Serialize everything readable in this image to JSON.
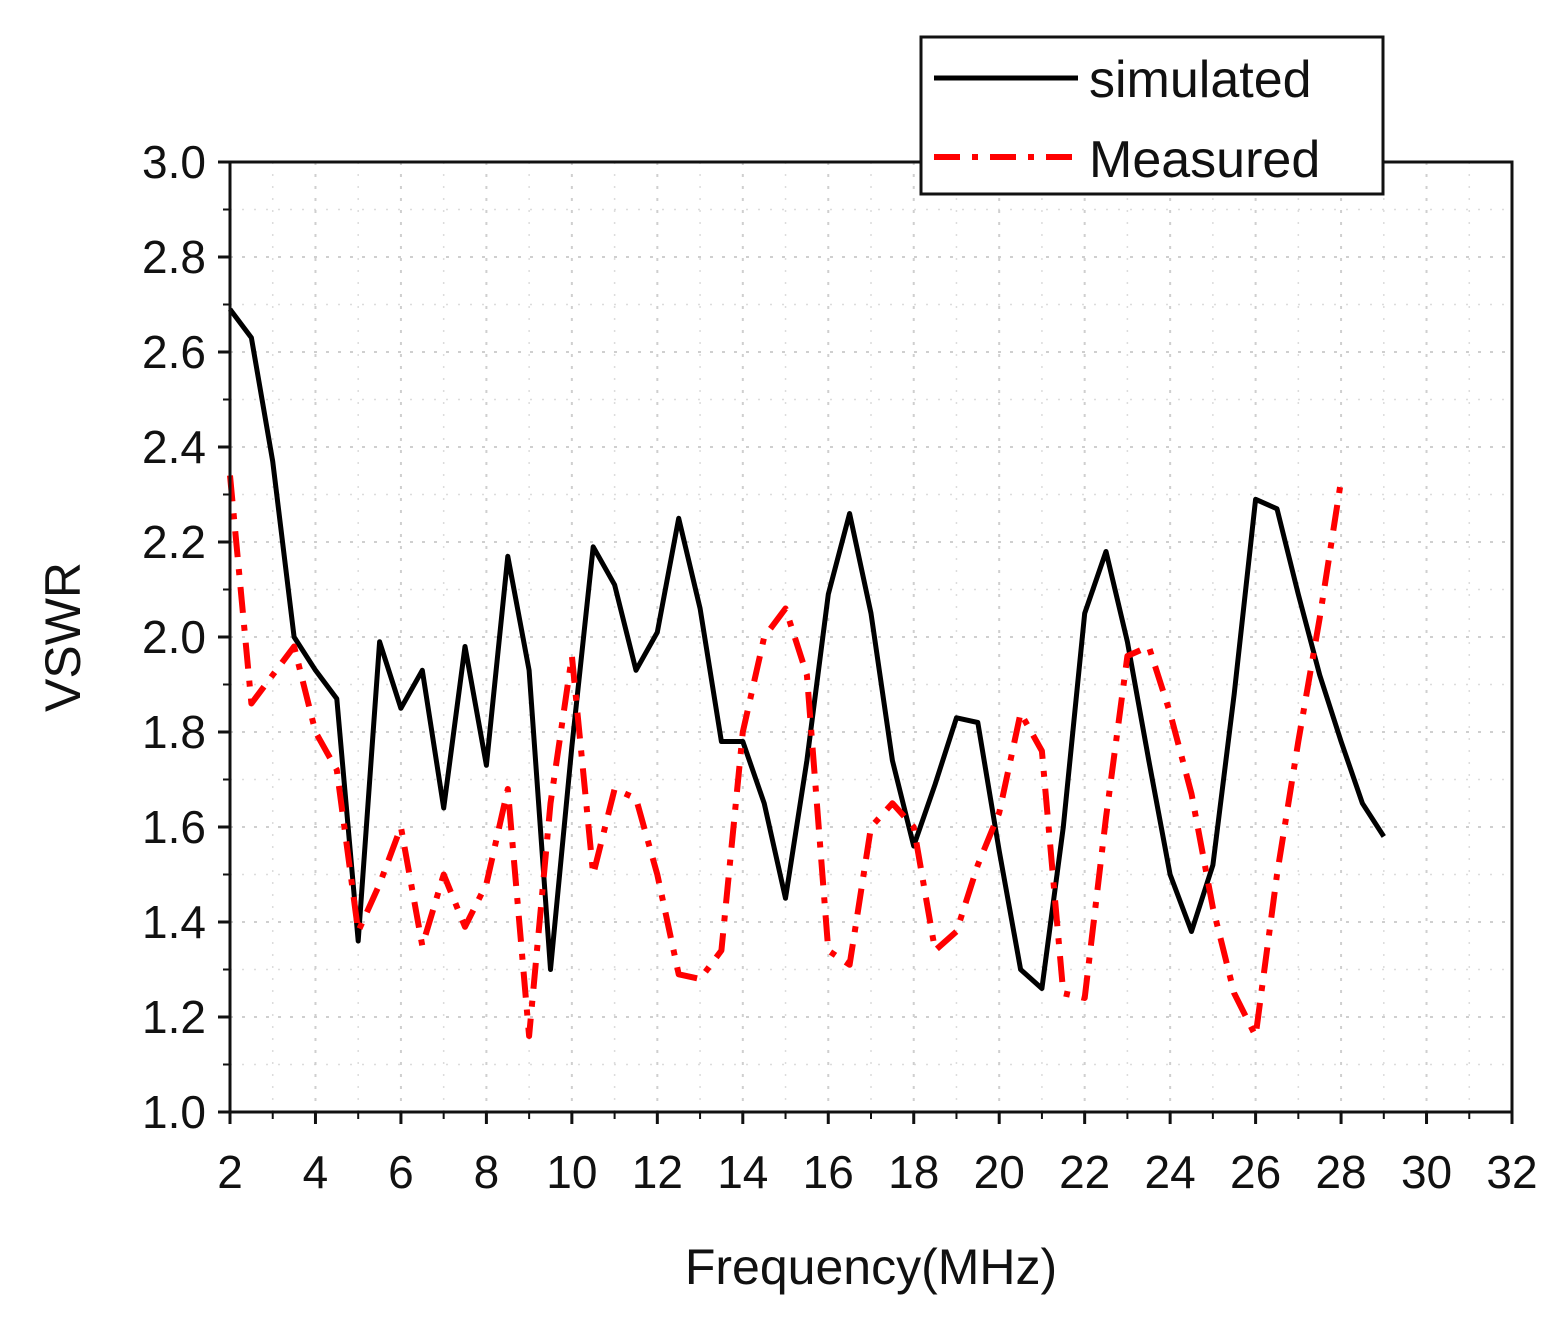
{
  "chart_data": {
    "type": "line",
    "xlabel": "Frequency(MHz)",
    "ylabel": "VSWR",
    "xlim": [
      2,
      32
    ],
    "ylim": [
      1.0,
      3.0
    ],
    "x_ticks": [
      "2",
      "4",
      "6",
      "8",
      "10",
      "12",
      "14",
      "16",
      "18",
      "20",
      "22",
      "24",
      "26",
      "28",
      "30",
      "32"
    ],
    "y_ticks": [
      "1.0",
      "1.2",
      "1.4",
      "1.6",
      "1.8",
      "2.0",
      "2.2",
      "2.4",
      "2.6",
      "2.8",
      "3.0"
    ],
    "grid": true,
    "legend_position": "top-right",
    "series": [
      {
        "name": "simulated",
        "color": "#000000",
        "style": "solid",
        "points": [
          [
            2,
            2.69
          ],
          [
            2.5,
            2.63
          ],
          [
            3,
            2.37
          ],
          [
            3.5,
            2.0
          ],
          [
            4,
            1.93
          ],
          [
            4.5,
            1.87
          ],
          [
            5,
            1.36
          ],
          [
            5.5,
            1.99
          ],
          [
            6,
            1.85
          ],
          [
            6.5,
            1.93
          ],
          [
            7,
            1.64
          ],
          [
            7.5,
            1.98
          ],
          [
            8,
            1.73
          ],
          [
            8.5,
            2.17
          ],
          [
            9,
            1.93
          ],
          [
            9.5,
            1.3
          ],
          [
            10,
            1.77
          ],
          [
            10.5,
            2.19
          ],
          [
            11,
            2.11
          ],
          [
            11.5,
            1.93
          ],
          [
            12,
            2.01
          ],
          [
            12.5,
            2.25
          ],
          [
            13,
            2.06
          ],
          [
            13.5,
            1.78
          ],
          [
            14,
            1.78
          ],
          [
            14.5,
            1.65
          ],
          [
            15,
            1.45
          ],
          [
            15.5,
            1.74
          ],
          [
            16,
            2.09
          ],
          [
            16.5,
            2.26
          ],
          [
            17,
            2.05
          ],
          [
            17.5,
            1.74
          ],
          [
            18,
            1.56
          ],
          [
            18.5,
            1.69
          ],
          [
            19,
            1.83
          ],
          [
            19.5,
            1.82
          ],
          [
            20,
            1.55
          ],
          [
            20.5,
            1.3
          ],
          [
            21,
            1.26
          ],
          [
            21.5,
            1.6
          ],
          [
            22,
            2.05
          ],
          [
            22.5,
            2.18
          ],
          [
            23,
            1.99
          ],
          [
            23.5,
            1.74
          ],
          [
            24,
            1.5
          ],
          [
            24.5,
            1.38
          ],
          [
            25,
            1.52
          ],
          [
            25.5,
            1.88
          ],
          [
            26,
            2.29
          ],
          [
            26.5,
            2.27
          ],
          [
            27,
            2.09
          ],
          [
            27.5,
            1.92
          ],
          [
            28,
            1.78
          ],
          [
            28.5,
            1.65
          ],
          [
            29,
            1.58
          ]
        ]
      },
      {
        "name": "Measured",
        "color": "#ff0000",
        "style": "dash-dot",
        "points": [
          [
            2,
            2.34
          ],
          [
            2.5,
            1.86
          ],
          [
            3,
            1.92
          ],
          [
            3.5,
            1.98
          ],
          [
            4,
            1.8
          ],
          [
            4.5,
            1.72
          ],
          [
            5,
            1.38
          ],
          [
            5.5,
            1.48
          ],
          [
            6,
            1.6
          ],
          [
            6.5,
            1.35
          ],
          [
            7,
            1.5
          ],
          [
            7.5,
            1.39
          ],
          [
            8,
            1.48
          ],
          [
            8.5,
            1.68
          ],
          [
            9,
            1.16
          ],
          [
            9.5,
            1.65
          ],
          [
            10,
            1.96
          ],
          [
            10.5,
            1.5
          ],
          [
            11,
            1.68
          ],
          [
            11.5,
            1.66
          ],
          [
            12,
            1.5
          ],
          [
            12.5,
            1.29
          ],
          [
            13,
            1.28
          ],
          [
            13.5,
            1.34
          ],
          [
            14,
            1.8
          ],
          [
            14.5,
            2.0
          ],
          [
            15,
            2.06
          ],
          [
            15.5,
            1.92
          ],
          [
            16,
            1.34
          ],
          [
            16.5,
            1.31
          ],
          [
            17,
            1.6
          ],
          [
            17.5,
            1.65
          ],
          [
            18,
            1.6
          ],
          [
            18.5,
            1.34
          ],
          [
            19,
            1.38
          ],
          [
            19.5,
            1.52
          ],
          [
            20,
            1.63
          ],
          [
            20.5,
            1.84
          ],
          [
            21,
            1.76
          ],
          [
            21.5,
            1.25
          ],
          [
            22,
            1.24
          ],
          [
            22.5,
            1.62
          ],
          [
            23,
            1.96
          ],
          [
            23.5,
            1.98
          ],
          [
            24,
            1.84
          ],
          [
            24.5,
            1.67
          ],
          [
            25,
            1.43
          ],
          [
            25.5,
            1.25
          ],
          [
            26,
            1.16
          ],
          [
            26.5,
            1.5
          ],
          [
            27,
            1.78
          ],
          [
            27.5,
            2.04
          ],
          [
            28,
            2.33
          ]
        ]
      }
    ]
  }
}
